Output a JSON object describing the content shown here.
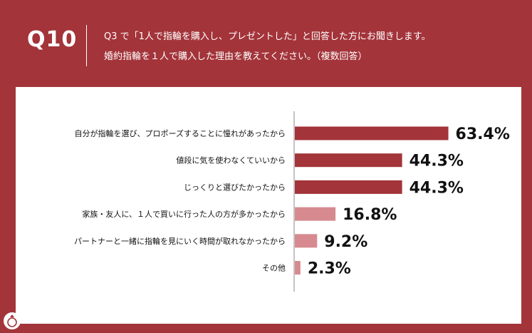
{
  "header": {
    "qnum": "Q10",
    "question_line1": "Q3 で「1人で指輪を購入し、プレゼントした」と回答した方にお聞きします。",
    "question_line2": "婚約指輪を１人で購入した理由を教えてください。（複数回答）"
  },
  "colors": {
    "background": "#a3343a",
    "bar_dark": "#a3343a",
    "bar_light": "#d68a90",
    "panel": "#ffffff",
    "text": "#111111"
  },
  "chart_data": {
    "type": "bar",
    "orientation": "horizontal",
    "categories": [
      "自分が指輪を選び、プロポーズすることに憧れがあったから",
      "値段に気を使わなくていいから",
      "じっくりと選びたかったから",
      "家族・友人に、１人で買いに行った人の方が多かったから",
      "パートナーと一緒に指輪を見にいく時間が取れなかったから",
      "その他"
    ],
    "values": [
      63.4,
      44.3,
      44.3,
      16.8,
      9.2,
      2.3
    ],
    "value_labels": [
      "63.4%",
      "44.3%",
      "44.3%",
      "16.8%",
      "9.2%",
      "2.3%"
    ],
    "highlight": [
      true,
      true,
      true,
      false,
      false,
      false
    ],
    "xlim": [
      0,
      100
    ],
    "grid": false
  }
}
